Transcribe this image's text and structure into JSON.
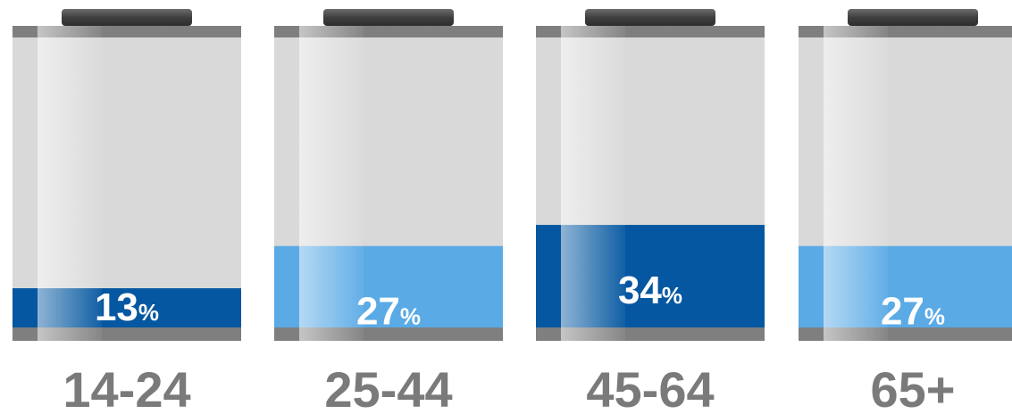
{
  "chart_data": {
    "type": "bar",
    "title": "",
    "xlabel": "",
    "ylabel": "",
    "ylim": [
      0,
      100
    ],
    "unit": "%",
    "categories": [
      "14-24",
      "25-44",
      "45-64",
      "65+"
    ],
    "values": [
      13,
      27,
      34,
      27
    ],
    "value_labels": [
      "13",
      "27",
      "34",
      "27"
    ],
    "bar_colors": [
      "#0457a0",
      "#5aaae6",
      "#0457a0",
      "#5aaae6"
    ],
    "grid": false,
    "legend": "none",
    "style": "battery"
  },
  "colors": {
    "battery_body": "#d9d9d9",
    "battery_cap": "#4a4a4a",
    "battery_rim": "#7f7f7f",
    "glass_highlight": "#ffffff",
    "value_text": "#ffffff",
    "category_text": "#7a7a7a",
    "dark_fill": "#0457a0",
    "light_fill": "#5aaae6"
  }
}
